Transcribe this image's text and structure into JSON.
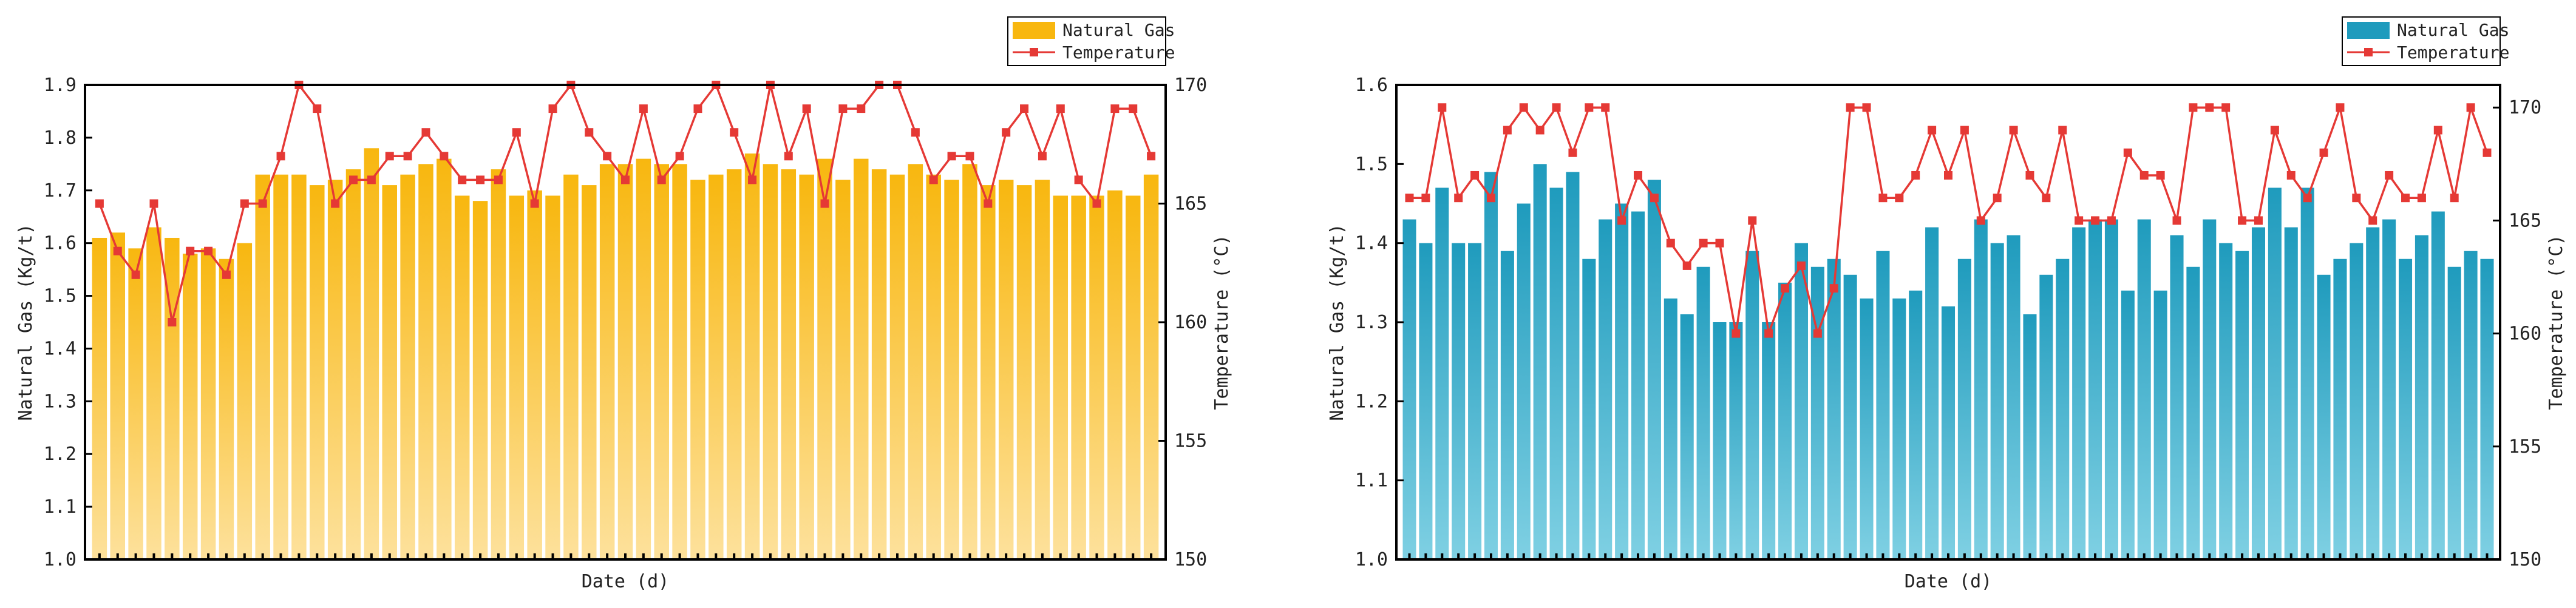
{
  "colors": {
    "left_bar_top": "#f8b70f",
    "left_bar_bottom": "#fde19c",
    "right_bar_top": "#1f9bbd",
    "right_bar_bottom": "#7fd0e3",
    "line": "#e53935",
    "axis": "#000000"
  },
  "chart_data": [
    {
      "type": "bar+line",
      "xlabel": "Date (d)",
      "ylabel": "Natural Gas (Kg/t)",
      "y2label": "Temperature (°C)",
      "ylim": [
        1.0,
        1.9
      ],
      "yticks": [
        "1.0",
        "1.1",
        "1.2",
        "1.3",
        "1.4",
        "1.5",
        "1.6",
        "1.7",
        "1.8",
        "1.9"
      ],
      "y2lim": [
        150,
        170
      ],
      "y2ticks": [
        "150",
        "155",
        "160",
        "165",
        "170"
      ],
      "legend": [
        {
          "label": "Natural Gas"
        },
        {
          "label": "Temperature"
        }
      ],
      "series": [
        {
          "name": "Natural Gas",
          "kind": "bar",
          "values": [
            1.61,
            1.62,
            1.59,
            1.63,
            1.61,
            1.58,
            1.59,
            1.57,
            1.6,
            1.73,
            1.73,
            1.73,
            1.71,
            1.72,
            1.74,
            1.78,
            1.71,
            1.73,
            1.75,
            1.76,
            1.69,
            1.68,
            1.74,
            1.69,
            1.7,
            1.69,
            1.73,
            1.71,
            1.75,
            1.75,
            1.76,
            1.75,
            1.75,
            1.72,
            1.73,
            1.74,
            1.77,
            1.75,
            1.74,
            1.73,
            1.76,
            1.72,
            1.76,
            1.74,
            1.73,
            1.75,
            1.73,
            1.72,
            1.75,
            1.71,
            1.72,
            1.71,
            1.72,
            1.69,
            1.69,
            1.69,
            1.7,
            1.69,
            1.73
          ]
        },
        {
          "name": "Temperature",
          "kind": "line",
          "values": [
            165,
            163,
            162,
            165,
            160,
            163,
            163,
            162,
            165,
            165,
            167,
            170,
            169,
            165,
            166,
            166,
            167,
            167,
            168,
            167,
            166,
            166,
            166,
            168,
            165,
            169,
            170,
            168,
            167,
            166,
            169,
            166,
            167,
            169,
            170,
            168,
            166,
            170,
            167,
            169,
            165,
            169,
            169,
            170,
            170,
            168,
            166,
            167,
            167,
            165,
            168,
            169,
            167,
            169,
            166,
            165,
            169,
            169,
            167
          ]
        }
      ]
    },
    {
      "type": "bar+line",
      "xlabel": "Date (d)",
      "ylabel": "Natural Gas (Kg/t)",
      "y2label": "Temperature (°C)",
      "ylim": [
        1.0,
        1.6
      ],
      "yticks": [
        "1.0",
        "1.1",
        "1.2",
        "1.3",
        "1.4",
        "1.5",
        "1.6"
      ],
      "y2lim": [
        150,
        171
      ],
      "y2ticks": [
        "150",
        "155",
        "160",
        "165",
        "170"
      ],
      "legend": [
        {
          "label": "Natural Gas"
        },
        {
          "label": "Temperature"
        }
      ],
      "series": [
        {
          "name": "Natural Gas",
          "kind": "bar",
          "values": [
            1.43,
            1.4,
            1.47,
            1.4,
            1.4,
            1.49,
            1.39,
            1.45,
            1.5,
            1.47,
            1.49,
            1.38,
            1.43,
            1.45,
            1.44,
            1.48,
            1.33,
            1.31,
            1.37,
            1.3,
            1.3,
            1.39,
            1.3,
            1.35,
            1.4,
            1.37,
            1.38,
            1.36,
            1.33,
            1.39,
            1.33,
            1.34,
            1.42,
            1.32,
            1.38,
            1.43,
            1.4,
            1.41,
            1.31,
            1.36,
            1.38,
            1.42,
            1.43,
            1.43,
            1.34,
            1.43,
            1.34,
            1.41,
            1.37,
            1.43,
            1.4,
            1.39,
            1.42,
            1.47,
            1.42,
            1.47,
            1.36,
            1.38,
            1.4,
            1.42,
            1.43,
            1.38,
            1.41,
            1.44,
            1.37,
            1.39,
            1.38
          ]
        },
        {
          "name": "Temperature",
          "kind": "line",
          "values": [
            166,
            166,
            170,
            166,
            167,
            166,
            169,
            170,
            169,
            170,
            168,
            170,
            170,
            165,
            167,
            166,
            164,
            163,
            164,
            164,
            160,
            165,
            160,
            162,
            163,
            160,
            162,
            170,
            170,
            166,
            166,
            167,
            169,
            167,
            169,
            165,
            166,
            169,
            167,
            166,
            169,
            165,
            165,
            165,
            168,
            167,
            167,
            165,
            170,
            170,
            170,
            165,
            165,
            169,
            167,
            166,
            168,
            170,
            166,
            165,
            167,
            166,
            166,
            169,
            166,
            170,
            168
          ]
        }
      ]
    }
  ]
}
